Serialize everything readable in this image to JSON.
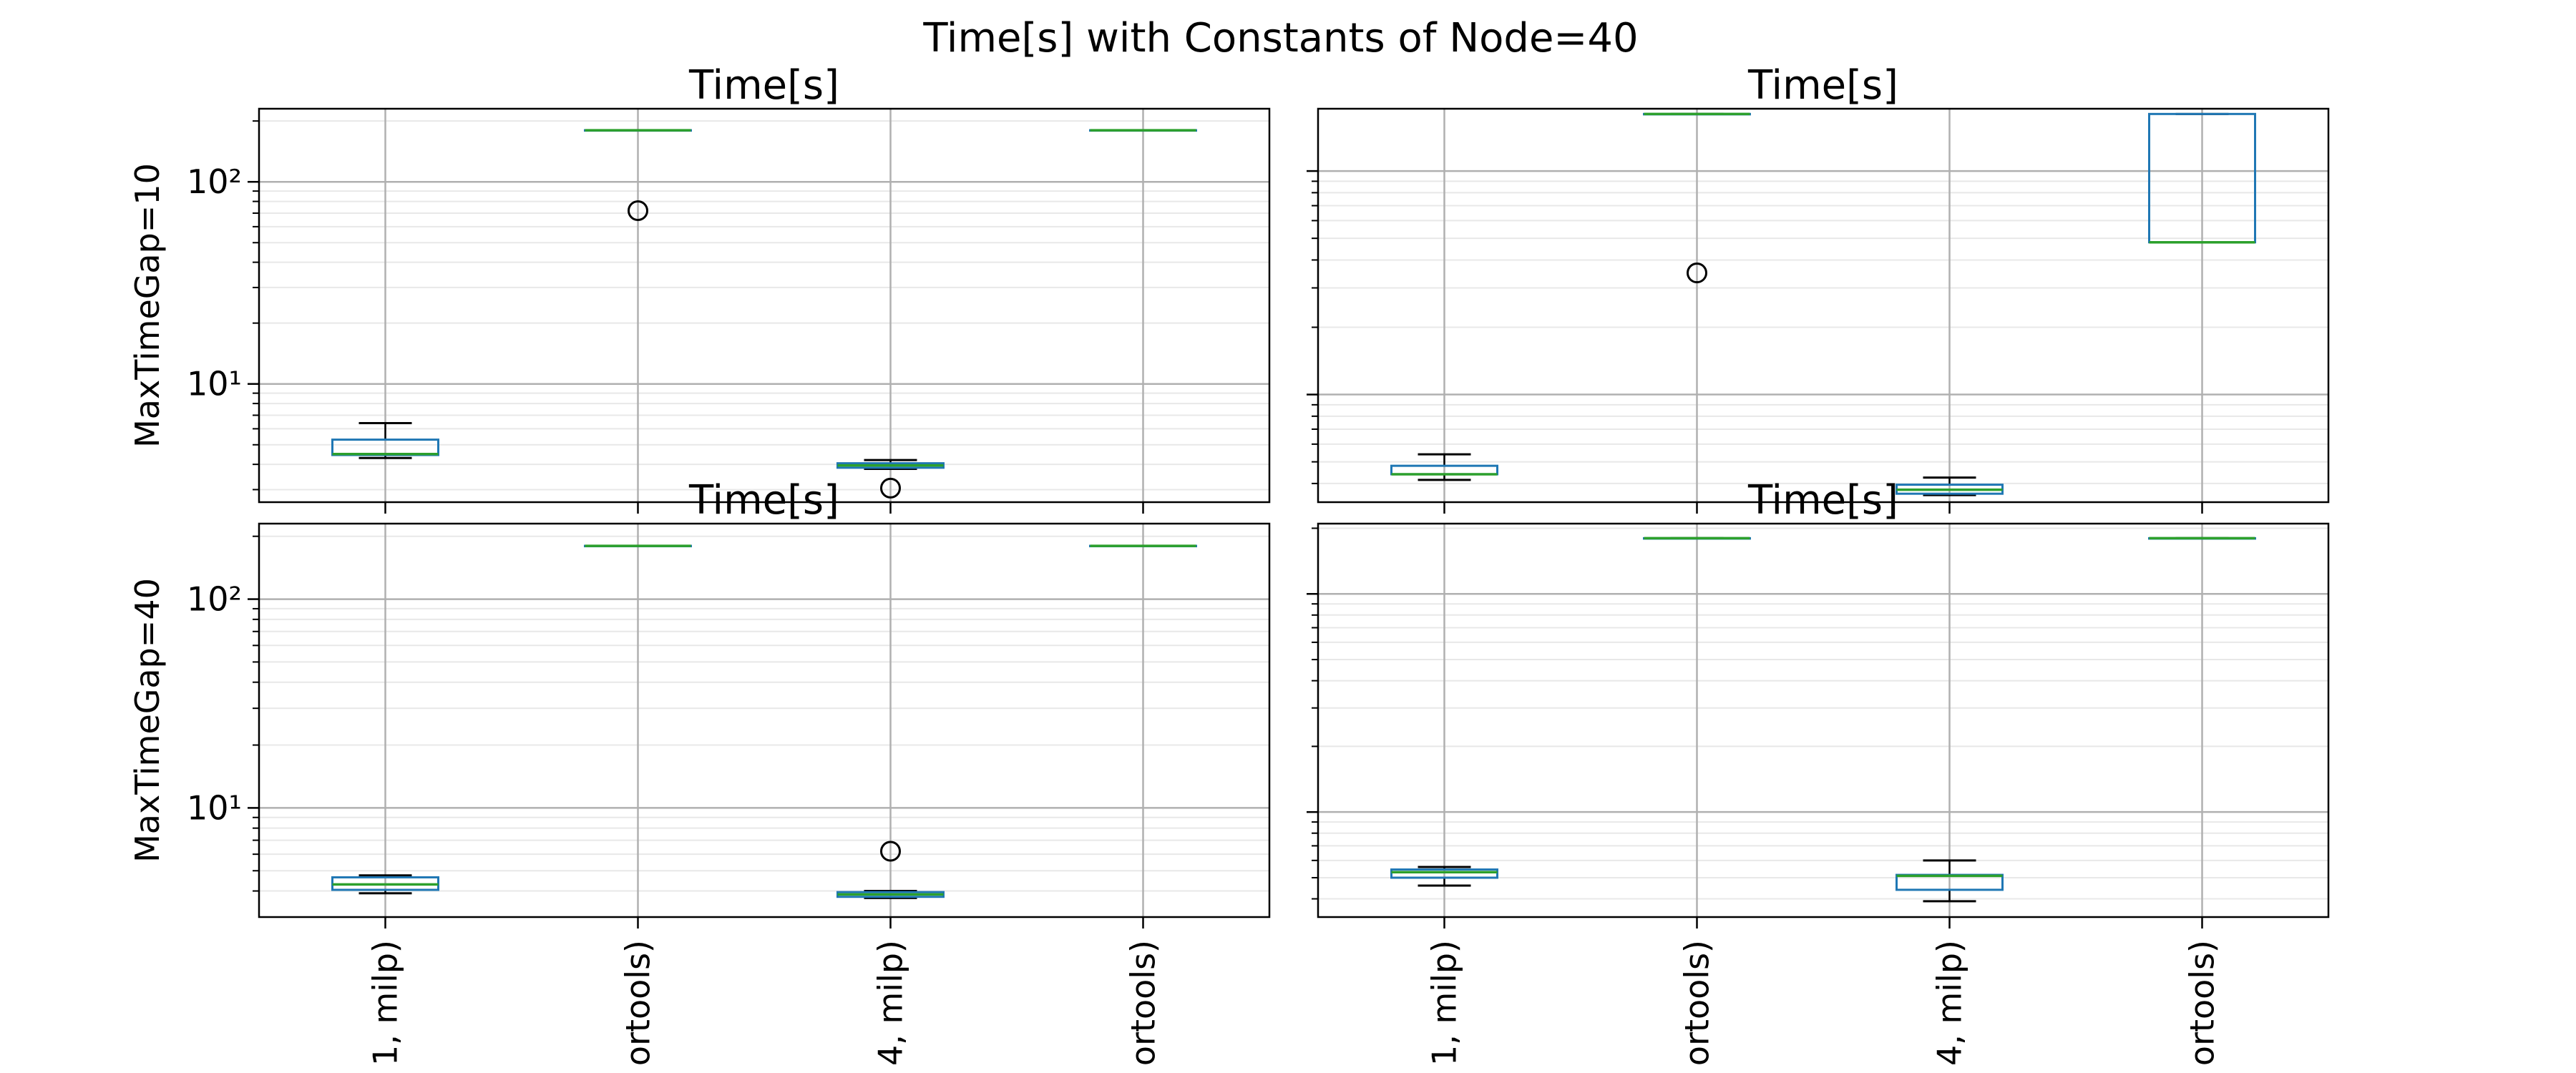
{
  "suptitle": "Time[s] with Constants of Node=40",
  "colors": {
    "box": "#1f77b4",
    "median": "#2ca02c",
    "whisker": "#000000",
    "grid_major": "#b0b0b0",
    "grid_minor": "#e8e8e8"
  },
  "chart_data": [
    {
      "type": "box",
      "title": "Time[s]",
      "ylabel": "MaxTimeGap=10",
      "yscale": "log",
      "ylim": [
        2.6,
        230
      ],
      "yticks": [
        {
          "value": 10,
          "label": "10¹"
        },
        {
          "value": 100,
          "label": "10²"
        }
      ],
      "grid": true,
      "categories": [
        "1, milp)",
        "ortools)",
        "4, milp)",
        "ortools)"
      ],
      "show_xticklabels": false,
      "boxes": [
        {
          "whislo": 4.3,
          "q1": 4.45,
          "med": 4.5,
          "q3": 5.3,
          "whishi": 6.4,
          "fliers": []
        },
        {
          "whislo": 180,
          "q1": 180,
          "med": 180,
          "q3": 180,
          "whishi": 180,
          "fliers": [
            72
          ]
        },
        {
          "whislo": 3.8,
          "q1": 3.85,
          "med": 3.95,
          "q3": 4.05,
          "whishi": 4.2,
          "fliers": [
            3.05
          ]
        },
        {
          "whislo": 180,
          "q1": 180,
          "med": 180,
          "q3": 180,
          "whishi": 180,
          "fliers": []
        }
      ]
    },
    {
      "type": "box",
      "title": "Time[s]",
      "ylabel": "",
      "yscale": "log",
      "ylim": [
        3.3,
        190
      ],
      "yticks": [
        {
          "value": 10,
          "label": ""
        },
        {
          "value": 100,
          "label": ""
        }
      ],
      "grid": true,
      "categories": [
        "1, milp)",
        "ortools)",
        "4, milp)",
        "ortools)"
      ],
      "show_xticklabels": false,
      "boxes": [
        {
          "whislo": 4.15,
          "q1": 4.4,
          "med": 4.4,
          "q3": 4.8,
          "whishi": 5.4,
          "fliers": []
        },
        {
          "whislo": 180,
          "q1": 180,
          "med": 180,
          "q3": 180,
          "whishi": 180,
          "fliers": [
            35
          ]
        },
        {
          "whislo": 3.55,
          "q1": 3.6,
          "med": 3.75,
          "q3": 3.95,
          "whishi": 4.25,
          "fliers": []
        },
        {
          "whislo": 48,
          "q1": 48,
          "med": 48,
          "q3": 180,
          "whishi": 180,
          "fliers": []
        }
      ]
    },
    {
      "type": "box",
      "title": "Time[s]",
      "ylabel": "MaxTimeGap=40",
      "yscale": "log",
      "ylim": [
        3.0,
        230
      ],
      "yticks": [
        {
          "value": 10,
          "label": "10¹"
        },
        {
          "value": 100,
          "label": "10²"
        }
      ],
      "grid": true,
      "categories": [
        "1, milp)",
        "ortools)",
        "4, milp)",
        "ortools)"
      ],
      "show_xticklabels": true,
      "boxes": [
        {
          "whislo": 3.9,
          "q1": 4.05,
          "med": 4.3,
          "q3": 4.65,
          "whishi": 4.75,
          "fliers": []
        },
        {
          "whislo": 180,
          "q1": 180,
          "med": 180,
          "q3": 180,
          "whishi": 180,
          "fliers": []
        },
        {
          "whislo": 3.7,
          "q1": 3.75,
          "med": 3.85,
          "q3": 3.95,
          "whishi": 4.0,
          "fliers": [
            6.2
          ]
        },
        {
          "whislo": 180,
          "q1": 180,
          "med": 180,
          "q3": 180,
          "whishi": 180,
          "fliers": []
        }
      ]
    },
    {
      "type": "box",
      "title": "Time[s]",
      "ylabel": "",
      "yscale": "log",
      "ylim": [
        3.3,
        210
      ],
      "yticks": [
        {
          "value": 10,
          "label": ""
        },
        {
          "value": 100,
          "label": ""
        }
      ],
      "grid": true,
      "categories": [
        "1, milp)",
        "ortools)",
        "4, milp)",
        "ortools)"
      ],
      "show_xticklabels": true,
      "boxes": [
        {
          "whislo": 4.6,
          "q1": 5.0,
          "med": 5.3,
          "q3": 5.45,
          "whishi": 5.6,
          "fliers": []
        },
        {
          "whislo": 180,
          "q1": 180,
          "med": 180,
          "q3": 180,
          "whishi": 180,
          "fliers": []
        },
        {
          "whislo": 3.9,
          "q1": 4.4,
          "med": 5.1,
          "q3": 5.15,
          "whishi": 6.0,
          "fliers": []
        },
        {
          "whislo": 180,
          "q1": 180,
          "med": 180,
          "q3": 180,
          "whishi": 180,
          "fliers": []
        }
      ]
    }
  ]
}
